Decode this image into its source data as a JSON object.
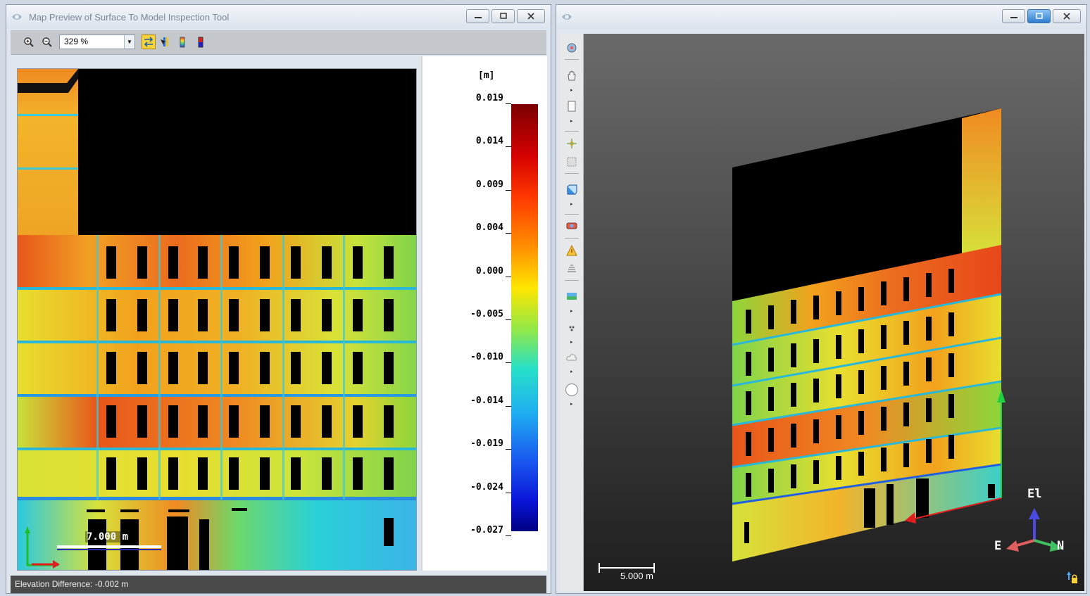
{
  "left_window": {
    "title": "Map Preview of Surface To Model Inspection Tool",
    "zoom_value": "329 %",
    "scale_label": "7.000 m",
    "status_text": "Elevation Difference: -0.002 m",
    "legend": {
      "unit": "[m]",
      "ticks": [
        "0.019",
        "0.014",
        "0.009",
        "0.004",
        "0.000",
        "-0.005",
        "-0.010",
        "-0.014",
        "-0.019",
        "-0.024",
        "-0.027"
      ]
    }
  },
  "right_window": {
    "scale_label": "5.000 m",
    "axes": {
      "up": "El",
      "left": "E",
      "right": "N"
    }
  },
  "colors": {
    "void": "#000000",
    "warm": "#e8561a",
    "orange": "#f2a11c",
    "yellow": "#e8de2e",
    "green": "#8cd63a",
    "cyan": "#29d0d8",
    "blue": "#1f5fe0",
    "status_bg": "#4a4a4a"
  },
  "icons": [
    "zoom-in-icon",
    "zoom-out-icon",
    "swap-axes-icon",
    "select-icon",
    "color-ramp-icon",
    "color-ramp-alt-icon",
    "app-logo-icon",
    "pan-hand-icon",
    "page-icon",
    "orbit-icon",
    "cube-icon",
    "camera-icon",
    "warning-triangle-icon",
    "layers-icon",
    "points-icon",
    "cloud-icon",
    "sphere-icon",
    "lock-icon"
  ]
}
